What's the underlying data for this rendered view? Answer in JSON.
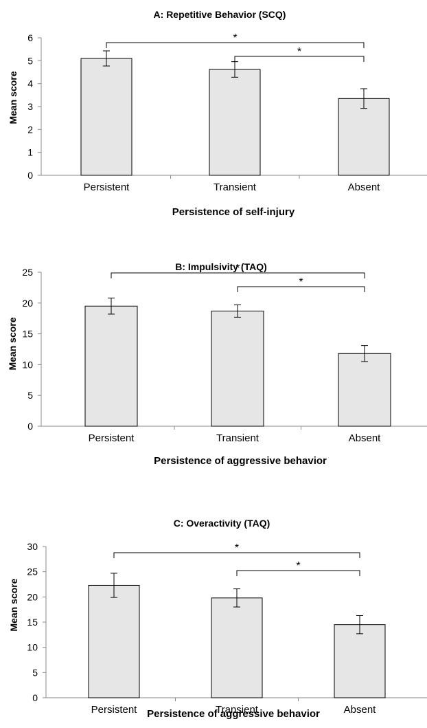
{
  "chart_data": [
    {
      "type": "bar",
      "title": "A: Repetitive Behavior (SCQ)",
      "xlabel": "Persistence of self-injury",
      "ylabel": "Mean score",
      "categories": [
        "Persistent",
        "Transient",
        "Absent"
      ],
      "values": [
        5.1,
        4.62,
        3.35
      ],
      "errors": [
        0.33,
        0.34,
        0.43
      ],
      "ylim": [
        0,
        6
      ],
      "yticks": [
        "0",
        "1",
        "2",
        "3",
        "4",
        "5",
        "6"
      ],
      "significance": [
        {
          "from": "Persistent",
          "to": "Absent",
          "label": "*"
        },
        {
          "from": "Transient",
          "to": "Absent",
          "label": "*"
        }
      ]
    },
    {
      "type": "bar",
      "title": "B: Impulsivity (TAQ)",
      "xlabel": "Persistence of aggressive behavior",
      "ylabel": "Mean score",
      "categories": [
        "Persistent",
        "Transient",
        "Absent"
      ],
      "values": [
        19.5,
        18.7,
        11.8
      ],
      "errors": [
        1.3,
        1.0,
        1.3
      ],
      "ylim": [
        0,
        25
      ],
      "yticks": [
        "0",
        "5",
        "10",
        "15",
        "20",
        "25"
      ],
      "significance": [
        {
          "from": "Persistent",
          "to": "Absent",
          "label": "*"
        },
        {
          "from": "Transient",
          "to": "Absent",
          "label": "*"
        }
      ]
    },
    {
      "type": "bar",
      "title": "C: Overactivity (TAQ)",
      "xlabel": "Persistence of aggressive behavior",
      "ylabel": "Mean score",
      "categories": [
        "Persistent",
        "Transient",
        "Absent"
      ],
      "values": [
        22.3,
        19.8,
        14.5
      ],
      "errors": [
        2.4,
        1.8,
        1.8
      ],
      "ylim": [
        0,
        30
      ],
      "yticks": [
        "0",
        "5",
        "10",
        "15",
        "20",
        "25",
        "30"
      ],
      "significance": [
        {
          "from": "Persistent",
          "to": "Absent",
          "label": "*"
        },
        {
          "from": "Transient",
          "to": "Absent",
          "label": "*"
        }
      ]
    }
  ],
  "colors": {
    "bar_fill": "#e6e6e6",
    "bar_stroke": "#000000",
    "axis": "#8a8a8a"
  }
}
